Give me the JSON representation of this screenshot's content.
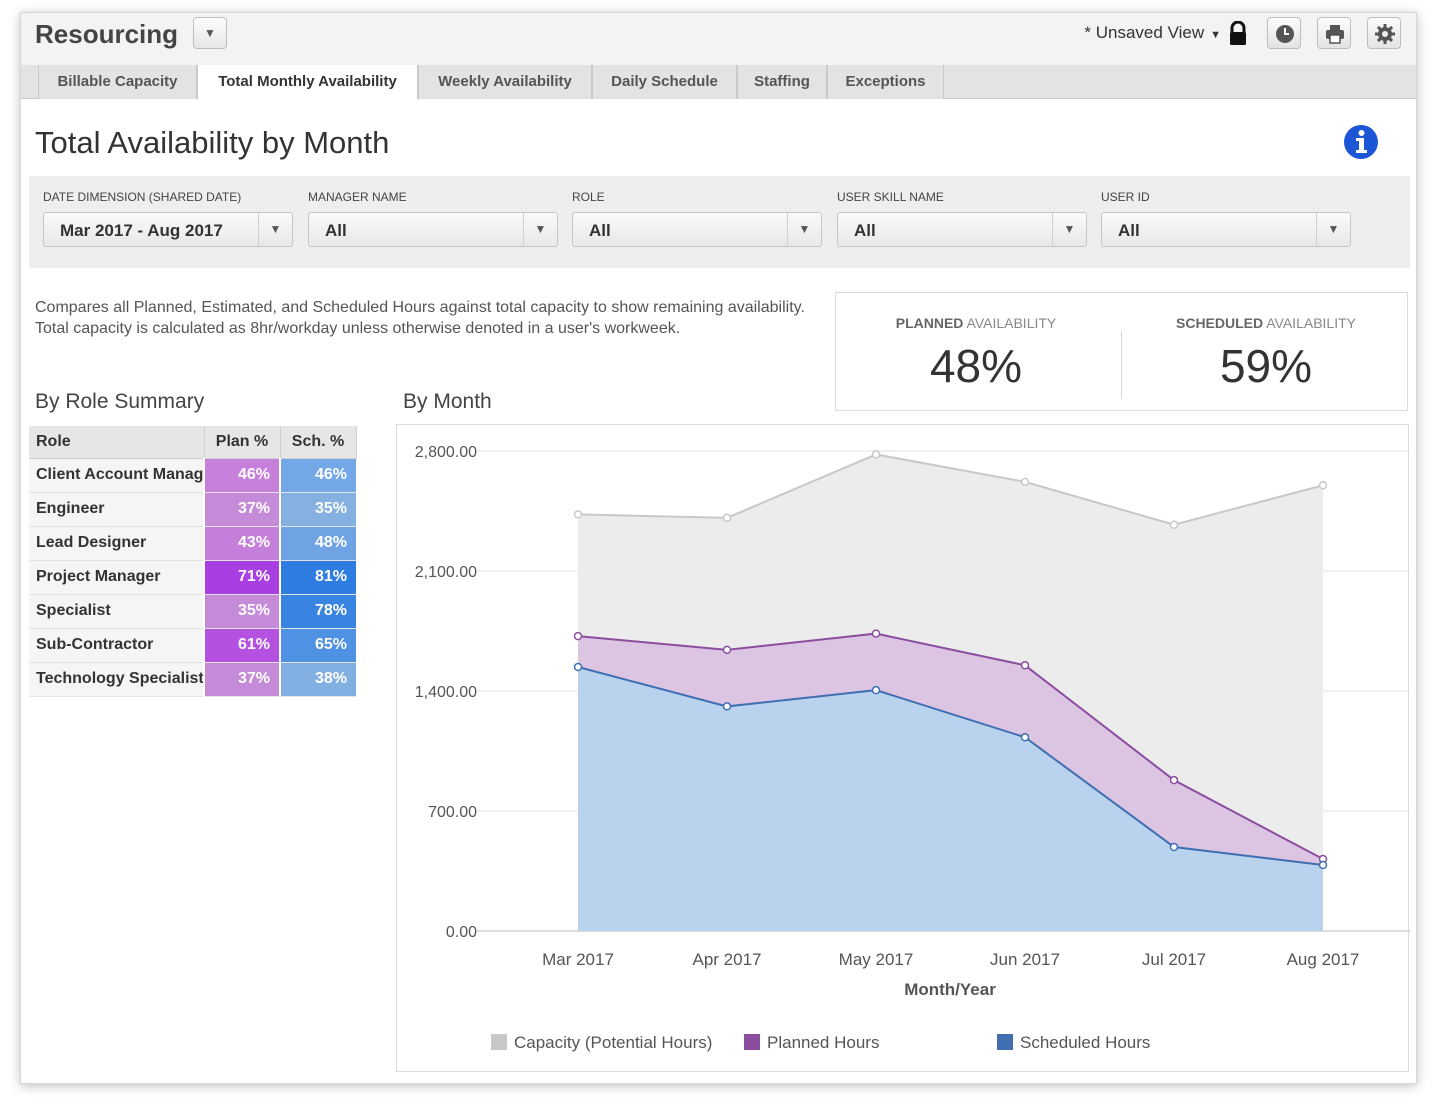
{
  "header": {
    "app_title": "Resourcing",
    "view_label": "* Unsaved View"
  },
  "tabs": [
    {
      "label": "Billable Capacity",
      "active": false
    },
    {
      "label": "Total Monthly Availability",
      "active": true
    },
    {
      "label": "Weekly Availability",
      "active": false
    },
    {
      "label": "Daily Schedule",
      "active": false
    },
    {
      "label": "Staffing",
      "active": false
    },
    {
      "label": "Exceptions",
      "active": false
    }
  ],
  "page_title": "Total Availability by Month",
  "filters": [
    {
      "label": "DATE DIMENSION (SHARED DATE)",
      "value": "Mar 2017 - Aug 2017"
    },
    {
      "label": "MANAGER NAME",
      "value": "All"
    },
    {
      "label": "ROLE",
      "value": "All"
    },
    {
      "label": "USER SKILL NAME",
      "value": "All"
    },
    {
      "label": "USER ID",
      "value": "All"
    }
  ],
  "description": "Compares all Planned, Estimated, and Scheduled Hours against total capacity to show remaining availability. Total capacity is calculated as 8hr/workday unless otherwise denoted in a user's workweek.",
  "kpis": {
    "planned": {
      "label_bold": "PLANNED",
      "label_rest": " AVAILABILITY",
      "value": "48%"
    },
    "scheduled": {
      "label_bold": "SCHEDULED",
      "label_rest": " AVAILABILITY",
      "value": "59%"
    }
  },
  "role_summary": {
    "title": "By Role Summary",
    "headers": {
      "role": "Role",
      "plan": "Plan %",
      "sch": "Sch. %"
    },
    "rows": [
      {
        "role": "Client Account Manager",
        "plan": "46%",
        "sch": "46%",
        "plan_color": "#c77fdc",
        "sch_color": "#73a7e6"
      },
      {
        "role": "Engineer",
        "plan": "37%",
        "sch": "35%",
        "plan_color": "#c58bd9",
        "sch_color": "#85b1e2"
      },
      {
        "role": "Lead Designer",
        "plan": "43%",
        "sch": "48%",
        "plan_color": "#c47fdb",
        "sch_color": "#6fa3e4"
      },
      {
        "role": "Project Manager",
        "plan": "71%",
        "sch": "81%",
        "plan_color": "#a93ee3",
        "sch_color": "#2f7de1"
      },
      {
        "role": "Specialist",
        "plan": "35%",
        "sch": "78%",
        "plan_color": "#c58bd9",
        "sch_color": "#3a84e1"
      },
      {
        "role": "Sub-Contractor",
        "plan": "61%",
        "sch": "65%",
        "plan_color": "#b451e1",
        "sch_color": "#4f91e3"
      },
      {
        "role": "Technology Specialist",
        "plan": "37%",
        "sch": "38%",
        "plan_color": "#c58bd9",
        "sch_color": "#82afe2"
      }
    ]
  },
  "by_month_title": "By Month",
  "chart_data": {
    "type": "area",
    "categories": [
      "Mar 2017",
      "Apr 2017",
      "May 2017",
      "Jun 2017",
      "Jul 2017",
      "Aug 2017"
    ],
    "xlabel": "Month/Year",
    "ylabel": "",
    "ylim": [
      0,
      2800
    ],
    "y_ticks": [
      "2,800.00",
      "2,100.00",
      "1,400.00",
      "700.00",
      "0.00"
    ],
    "y_tick_values": [
      2800,
      2100,
      1400,
      700,
      0
    ],
    "grid": true,
    "legend": "bottom",
    "series": [
      {
        "name": "Capacity (Potential Hours)",
        "values": [
          2430,
          2410,
          2780,
          2620,
          2370,
          2600
        ],
        "line_color": "#c8c8c8",
        "fill_color": "#ececec",
        "legend_color": "#c8c8c8"
      },
      {
        "name": "Planned Hours",
        "values": [
          1720,
          1640,
          1735,
          1550,
          880,
          420
        ],
        "line_color": "#8b4e9e",
        "fill_color": "#dcc4e3",
        "legend_color": "#8b4e9e"
      },
      {
        "name": "Scheduled Hours",
        "values": [
          1540,
          1310,
          1405,
          1130,
          490,
          385
        ],
        "line_color": "#3f6fb0",
        "fill_color": "#b9d3ee",
        "legend_color": "#3f6fb0"
      }
    ]
  }
}
